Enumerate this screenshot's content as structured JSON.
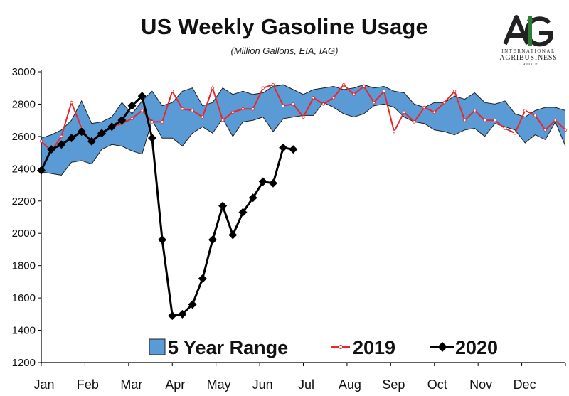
{
  "chart_data": {
    "type": "line",
    "title": "US Weekly Gasoline Usage",
    "subtitle": "(Million Gallons, EIA, IAG)",
    "xlabel": "",
    "ylabel": "",
    "ylim": [
      1200,
      3000
    ],
    "yticks": [
      1200,
      1400,
      1600,
      1800,
      2000,
      2200,
      2400,
      2600,
      2800,
      3000
    ],
    "xticks": [
      "Jan",
      "Feb",
      "Mar",
      "Apr",
      "May",
      "Jun",
      "Jul",
      "Aug",
      "Sep",
      "Oct",
      "Nov",
      "Dec"
    ],
    "legend_position": "bottom-inside",
    "grid": false,
    "colors": {
      "range_fill": "#5b9bd5",
      "range_edge": "#1f1f1f",
      "line_2019": "#e8262c",
      "line_2020": "#000000"
    },
    "series": [
      {
        "name": "5 Year Range",
        "kind": "range",
        "week": [
          1,
          2,
          3,
          4,
          5,
          6,
          7,
          8,
          9,
          10,
          11,
          12,
          13,
          14,
          15,
          16,
          17,
          18,
          19,
          20,
          21,
          22,
          23,
          24,
          25,
          26,
          27,
          28,
          29,
          30,
          31,
          32,
          33,
          34,
          35,
          36,
          37,
          38,
          39,
          40,
          41,
          42,
          43,
          44,
          45,
          46,
          47,
          48,
          49,
          50,
          51,
          52,
          53
        ],
        "low": [
          2380,
          2370,
          2360,
          2440,
          2450,
          2430,
          2520,
          2550,
          2540,
          2510,
          2490,
          2700,
          2590,
          2590,
          2540,
          2620,
          2660,
          2620,
          2710,
          2600,
          2690,
          2700,
          2720,
          2630,
          2710,
          2720,
          2730,
          2730,
          2810,
          2780,
          2740,
          2720,
          2740,
          2790,
          2800,
          2780,
          2720,
          2690,
          2680,
          2640,
          2630,
          2610,
          2640,
          2650,
          2600,
          2680,
          2660,
          2640,
          2560,
          2610,
          2580,
          2690,
          2540
        ],
        "high": [
          2590,
          2610,
          2640,
          2700,
          2820,
          2680,
          2690,
          2720,
          2810,
          2740,
          2820,
          2880,
          2790,
          2810,
          2880,
          2900,
          2790,
          2810,
          2900,
          2860,
          2880,
          2860,
          2870,
          2910,
          2920,
          2890,
          2860,
          2890,
          2900,
          2910,
          2890,
          2900,
          2920,
          2900,
          2910,
          2880,
          2870,
          2800,
          2780,
          2810,
          2810,
          2850,
          2830,
          2870,
          2810,
          2800,
          2820,
          2740,
          2720,
          2760,
          2780,
          2780,
          2760
        ]
      },
      {
        "name": "2019",
        "week": [
          1,
          2,
          3,
          4,
          5,
          6,
          7,
          8,
          9,
          10,
          11,
          12,
          13,
          14,
          15,
          16,
          17,
          18,
          19,
          20,
          21,
          22,
          23,
          24,
          25,
          26,
          27,
          28,
          29,
          30,
          31,
          32,
          33,
          34,
          35,
          36,
          37,
          38,
          39,
          40,
          41,
          42,
          43,
          44,
          45,
          46,
          47,
          48,
          49,
          50,
          51,
          52,
          53
        ],
        "values": [
          2570,
          2510,
          2600,
          2810,
          2650,
          2560,
          2620,
          2660,
          2680,
          2710,
          2760,
          2690,
          2690,
          2880,
          2770,
          2760,
          2720,
          2900,
          2700,
          2750,
          2770,
          2770,
          2900,
          2920,
          2790,
          2800,
          2720,
          2840,
          2800,
          2840,
          2920,
          2860,
          2910,
          2810,
          2880,
          2630,
          2750,
          2690,
          2780,
          2750,
          2810,
          2880,
          2700,
          2760,
          2700,
          2700,
          2650,
          2620,
          2760,
          2730,
          2640,
          2700,
          2640
        ]
      },
      {
        "name": "2020",
        "week": [
          1,
          2,
          3,
          4,
          5,
          6,
          7,
          8,
          9,
          10,
          11,
          12,
          13,
          14,
          15,
          16,
          17,
          18,
          19,
          20,
          21,
          22,
          23,
          24,
          25,
          26
        ],
        "values": [
          2390,
          2520,
          2550,
          2590,
          2630,
          2570,
          2620,
          2660,
          2700,
          2790,
          2850,
          2590,
          1960,
          1490,
          1500,
          1560,
          1720,
          1960,
          2170,
          1990,
          2130,
          2220,
          2320,
          2310,
          2530,
          2520
        ]
      }
    ]
  }
}
